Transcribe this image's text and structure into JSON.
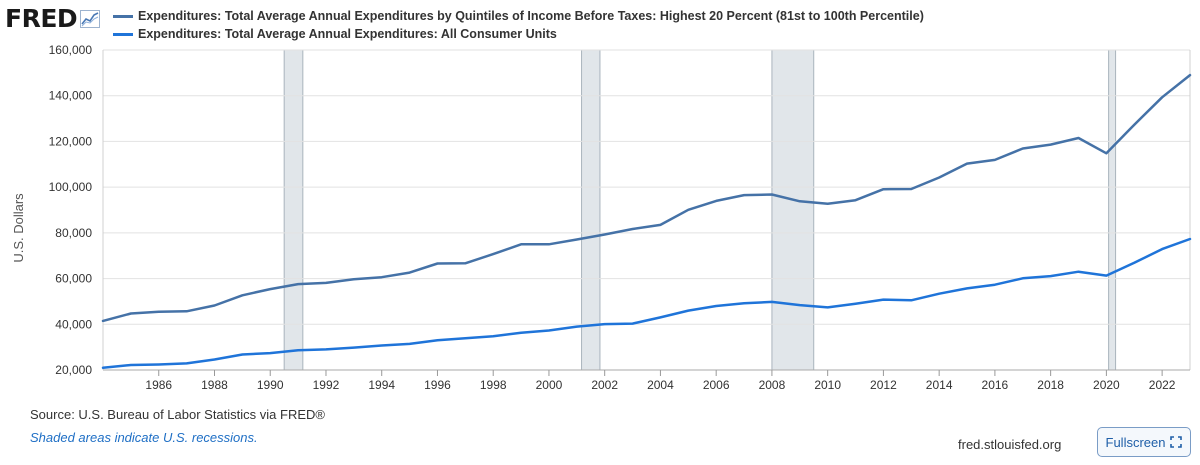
{
  "header": {
    "logo_text": "FRED",
    "logo_icon": "line-chart-icon"
  },
  "chart_data": {
    "type": "line",
    "ylabel": "U.S. Dollars",
    "ylim": [
      20000,
      160000
    ],
    "yticks": [
      {
        "v": 20000,
        "label": "20,000"
      },
      {
        "v": 40000,
        "label": "40,000"
      },
      {
        "v": 60000,
        "label": "60,000"
      },
      {
        "v": 80000,
        "label": "80,000"
      },
      {
        "v": 100000,
        "label": "100,000"
      },
      {
        "v": 120000,
        "label": "120,000"
      },
      {
        "v": 140000,
        "label": "140,000"
      },
      {
        "v": 160000,
        "label": "160,000"
      }
    ],
    "xlim": [
      1984,
      2023
    ],
    "xticks": [
      {
        "v": 1986,
        "label": "1986"
      },
      {
        "v": 1988,
        "label": "1988"
      },
      {
        "v": 1990,
        "label": "1990"
      },
      {
        "v": 1992,
        "label": "1992"
      },
      {
        "v": 1994,
        "label": "1994"
      },
      {
        "v": 1996,
        "label": "1996"
      },
      {
        "v": 1998,
        "label": "1998"
      },
      {
        "v": 2000,
        "label": "2000"
      },
      {
        "v": 2002,
        "label": "2002"
      },
      {
        "v": 2004,
        "label": "2004"
      },
      {
        "v": 2006,
        "label": "2006"
      },
      {
        "v": 2008,
        "label": "2008"
      },
      {
        "v": 2010,
        "label": "2010"
      },
      {
        "v": 2012,
        "label": "2012"
      },
      {
        "v": 2014,
        "label": "2014"
      },
      {
        "v": 2016,
        "label": "2016"
      },
      {
        "v": 2018,
        "label": "2018"
      },
      {
        "v": 2020,
        "label": "2020"
      },
      {
        "v": 2022,
        "label": "2022"
      }
    ],
    "grid": true,
    "recessions": [
      {
        "start": 1990.5,
        "end": 1991.17
      },
      {
        "start": 2001.17,
        "end": 2001.83
      },
      {
        "start": 2008.0,
        "end": 2009.5
      },
      {
        "start": 2020.08,
        "end": 2020.33
      }
    ],
    "recession_color": "#e1e6ea",
    "series": [
      {
        "name": "Expenditures: Total Average Annual Expenditures by Quintiles of Income Before Taxes: Highest 20 Percent (81st to 100th Percentile)",
        "color": "#4572a7",
        "x": [
          1984,
          1985,
          1986,
          1987,
          1988,
          1989,
          1990,
          1991,
          1992,
          1993,
          1994,
          1995,
          1996,
          1997,
          1998,
          1999,
          2000,
          2001,
          2002,
          2003,
          2004,
          2005,
          2006,
          2007,
          2008,
          2009,
          2010,
          2011,
          2012,
          2013,
          2014,
          2015,
          2016,
          2017,
          2018,
          2019,
          2020,
          2021,
          2022,
          2023
        ],
        "values": [
          41500,
          44700,
          45500,
          45700,
          48200,
          52700,
          55400,
          57600,
          58100,
          59700,
          60600,
          62600,
          66600,
          66700,
          70700,
          75000,
          75000,
          77100,
          79300,
          81700,
          83500,
          90100,
          94000,
          96500,
          96800,
          93800,
          92700,
          94300,
          99100,
          99200,
          104200,
          110300,
          111900,
          116900,
          118600,
          121500,
          114800,
          127300,
          139300,
          149000
        ]
      },
      {
        "name": "Expenditures: Total Average Annual Expenditures: All Consumer Units",
        "color": "#1f74d9",
        "x": [
          1984,
          1985,
          1986,
          1987,
          1988,
          1989,
          1990,
          1991,
          1992,
          1993,
          1994,
          1995,
          1996,
          1997,
          1998,
          1999,
          2000,
          2001,
          2002,
          2003,
          2004,
          2005,
          2006,
          2007,
          2008,
          2009,
          2010,
          2011,
          2012,
          2013,
          2014,
          2015,
          2016,
          2017,
          2018,
          2019,
          2020,
          2021,
          2022,
          2023
        ],
        "values": [
          21000,
          22200,
          22400,
          22900,
          24600,
          26800,
          27400,
          28600,
          29000,
          29800,
          30700,
          31400,
          33000,
          33900,
          34800,
          36300,
          37300,
          39000,
          40100,
          40300,
          43000,
          46000,
          48000,
          49200,
          49800,
          48400,
          47400,
          49000,
          50800,
          50500,
          53400,
          55700,
          57300,
          60100,
          61100,
          63000,
          61300,
          66900,
          72900,
          77300
        ]
      }
    ]
  },
  "footer": {
    "source": "Source: U.S. Bureau of Labor Statistics via FRED®",
    "note": "Shaded areas indicate U.S. recessions.",
    "site": "fred.stlouisfed.org",
    "fullscreen_label": "Fullscreen",
    "fullscreen_icon": "expand-icon"
  }
}
